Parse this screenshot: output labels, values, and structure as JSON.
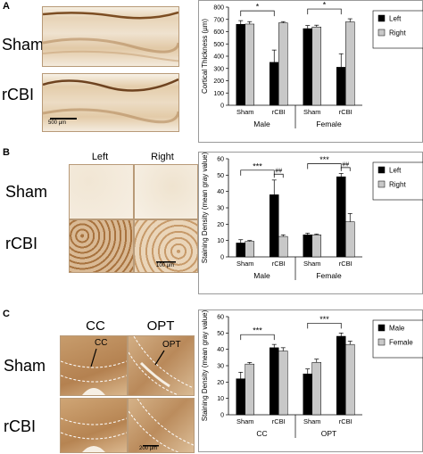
{
  "panel_a": {
    "letter": "A",
    "row_labels": [
      "Sham",
      "rCBI"
    ],
    "scale_bar": "500 µm"
  },
  "panel_b": {
    "letter": "B",
    "column_labels": [
      "Left",
      "Right"
    ],
    "row_labels": [
      "Sham",
      "rCBI"
    ],
    "scale_bar": "100 µm"
  },
  "panel_c": {
    "letter": "C",
    "column_labels": [
      "CC",
      "OPT"
    ],
    "row_labels": [
      "Sham",
      "rCBI"
    ],
    "inset_labels": [
      "CC",
      "OPT"
    ],
    "scale_bar": "200 µm"
  },
  "colors": {
    "black_bar": "#000000",
    "grey_bar": "#c8c8c8",
    "tissue": "#e8d3b4",
    "stain": "#8a5a2b"
  },
  "chart_data": [
    {
      "type": "bar",
      "ylabel": "Cortical Thickness (µm)",
      "ylim": [
        0,
        800
      ],
      "yticks": [
        0,
        100,
        200,
        300,
        400,
        500,
        600,
        700,
        800
      ],
      "categories": [
        "Sham",
        "rCBI",
        "Sham",
        "rCBI"
      ],
      "groups": [
        "Male",
        "Female"
      ],
      "series": [
        {
          "name": "Left",
          "color": "#000000",
          "values": [
            660,
            350,
            625,
            310
          ],
          "errors": [
            30,
            100,
            25,
            110
          ]
        },
        {
          "name": "Right",
          "color": "#c8c8c8",
          "values": [
            662,
            672,
            638,
            680
          ],
          "errors": [
            20,
            10,
            15,
            25
          ]
        }
      ],
      "significance": [
        {
          "label": "*",
          "group": 0
        },
        {
          "label": "*",
          "group": 1
        }
      ],
      "legend": "right"
    },
    {
      "type": "bar",
      "ylabel": "Staining Density (mean gray value)",
      "ylim": [
        0,
        60
      ],
      "yticks": [
        0,
        10,
        20,
        30,
        40,
        50,
        60
      ],
      "categories": [
        "Sham",
        "rCBI",
        "Sham",
        "rCBI"
      ],
      "groups": [
        "Male",
        "Female"
      ],
      "series": [
        {
          "name": "Left",
          "color": "#000000",
          "values": [
            8.5,
            38,
            13.5,
            49
          ],
          "errors": [
            2,
            9,
            1,
            2
          ]
        },
        {
          "name": "Right",
          "color": "#c8c8c8",
          "values": [
            9.5,
            12.5,
            13.5,
            21.5
          ],
          "errors": [
            0.5,
            1,
            0.5,
            5
          ]
        }
      ],
      "significance": [
        {
          "label": "***",
          "group": 0,
          "kind": "between"
        },
        {
          "label": "##",
          "group": 0,
          "kind": "within"
        },
        {
          "label": "***",
          "group": 1,
          "kind": "between"
        },
        {
          "label": "##",
          "group": 1,
          "kind": "within"
        }
      ],
      "legend": "right"
    },
    {
      "type": "bar",
      "ylabel": "Staining Density (mean gray value)",
      "ylim": [
        0,
        60
      ],
      "yticks": [
        0,
        10,
        20,
        30,
        40,
        50,
        60
      ],
      "categories": [
        "Sham",
        "rCBI",
        "Sham",
        "rCBI"
      ],
      "groups": [
        "CC",
        "OPT"
      ],
      "series": [
        {
          "name": "Male",
          "color": "#000000",
          "values": [
            22,
            41,
            25,
            48
          ],
          "errors": [
            4,
            2,
            3,
            2
          ]
        },
        {
          "name": "Female",
          "color": "#c8c8c8",
          "values": [
            31,
            39,
            32,
            43
          ],
          "errors": [
            1,
            2,
            2,
            2
          ]
        }
      ],
      "significance": [
        {
          "label": "***",
          "group": 0
        },
        {
          "label": "***",
          "group": 1
        }
      ],
      "legend": "right"
    }
  ]
}
